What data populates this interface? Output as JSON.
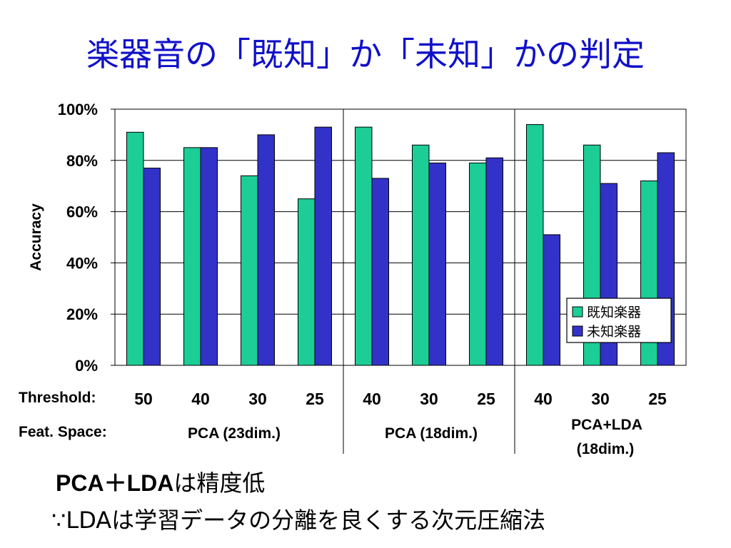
{
  "title": "楽器音の「既知」か「未知」かの判定",
  "colors": {
    "known": "#1ccd96",
    "unknown": "#3232c8",
    "title": "#1010c8"
  },
  "row_labels": {
    "threshold": "Threshold:",
    "feat_space": "Feat. Space:"
  },
  "feature_spaces": [
    "PCA (23dim.)",
    "PCA (18dim.)",
    "PCA+LDA",
    "(18dim.)"
  ],
  "notes": {
    "line1_bold": "PCA＋LDA",
    "line1_rest": "は精度低",
    "line2": "∵LDAは学習データの分離を良くする次元圧縮法"
  },
  "chart_data": {
    "type": "bar",
    "categories": [
      "50",
      "40",
      "30",
      "25",
      "40",
      "30",
      "25",
      "40",
      "30",
      "25"
    ],
    "series": [
      {
        "name": "既知楽器",
        "values": [
          91,
          85,
          74,
          65,
          93,
          86,
          79,
          94,
          86,
          72
        ]
      },
      {
        "name": "未知楽器",
        "values": [
          77,
          85,
          90,
          93,
          73,
          79,
          81,
          51,
          71,
          83
        ]
      }
    ],
    "ylabel": "Accuracy",
    "ylim": [
      0,
      100
    ],
    "yticks": [
      "0%",
      "20%",
      "40%",
      "60%",
      "80%",
      "100%"
    ],
    "groups": [
      {
        "label": "PCA (23dim.)",
        "size": 4
      },
      {
        "label": "PCA (18dim.)",
        "size": 3
      },
      {
        "label": "PCA+LDA (18dim.)",
        "size": 3
      }
    ],
    "legend_position": "bottom-right",
    "grid": true
  }
}
